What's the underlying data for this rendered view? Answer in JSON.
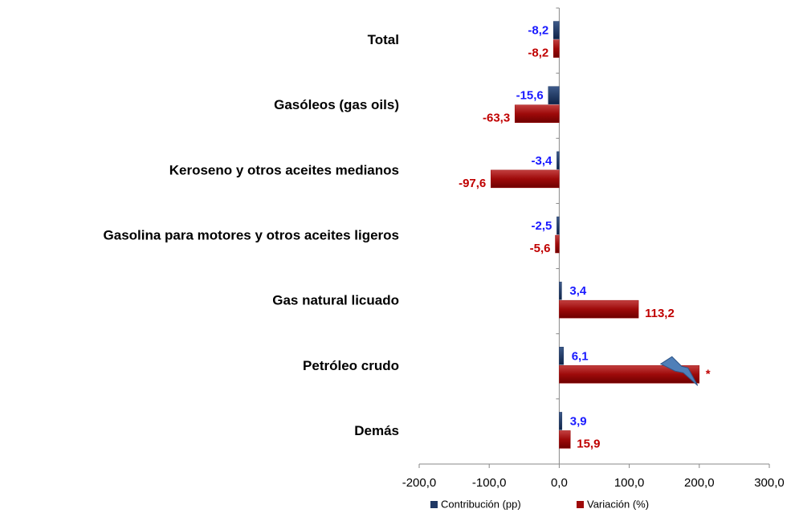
{
  "chart_data": {
    "type": "bar",
    "orientation": "horizontal",
    "categories": [
      "Total",
      "Gasóleos (gas oils)",
      "Keroseno y otros aceites medianos",
      "Gasolina para motores y otros aceites ligeros",
      "Gas natural licuado",
      "Petróleo crudo",
      "Demás"
    ],
    "series": [
      {
        "name": "Contribución (pp)",
        "color": "#1f3864",
        "label_color": "#1a1aff",
        "values": [
          -8.2,
          -15.6,
          -3.4,
          -2.5,
          3.4,
          6.1,
          3.9
        ],
        "value_labels": [
          "-8,2",
          "-15,6",
          "-3,4",
          "-2,5",
          "3,4",
          "6,1",
          "3,9"
        ]
      },
      {
        "name": "Variación (%)",
        "color": "#9e0a0a",
        "label_color": "#c00000",
        "values": [
          -8.2,
          -63.3,
          -97.6,
          -5.6,
          113.2,
          200,
          15.9
        ],
        "value_labels": [
          "-8,2",
          "-63,3",
          "-97,6",
          "-5,6",
          "113,2",
          "*",
          "15,9"
        ]
      }
    ],
    "xlim": [
      -200,
      300
    ],
    "xticks": [
      {
        "value": -200,
        "label": "-200,0"
      },
      {
        "value": -100,
        "label": "-100,0"
      },
      {
        "value": 0,
        "label": "0,0"
      },
      {
        "value": 100,
        "label": "100,0"
      },
      {
        "value": 200,
        "label": "200,0"
      },
      {
        "value": 300,
        "label": "300,0"
      }
    ],
    "legend": "bottom"
  }
}
